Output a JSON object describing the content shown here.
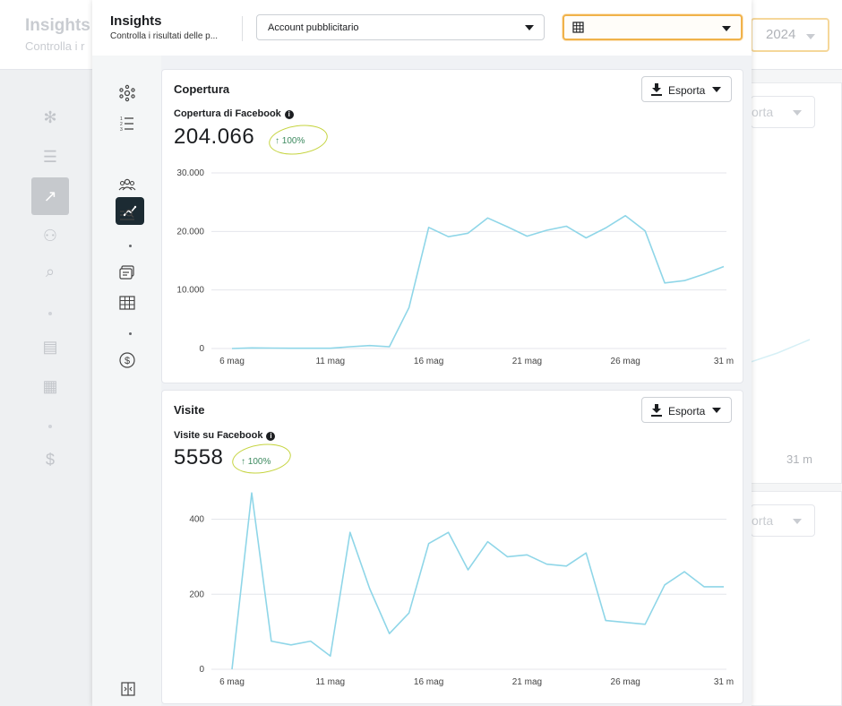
{
  "background": {
    "title": "Insights",
    "subtitle": "Controlla i r",
    "year": "2024",
    "export_partial_1": "orta",
    "export_partial_2": "orta",
    "x_end_label": "31 m"
  },
  "header": {
    "title": "Insights",
    "subtitle": "Controlla i risultati delle p...",
    "account_select": "Account pubblicitario",
    "table_select_icon": "table-icon"
  },
  "sidebar": {
    "items": [
      {
        "icon": "hub-icon"
      },
      {
        "icon": "list-icon"
      },
      {
        "icon": "trend-icon",
        "active": true
      },
      {
        "icon": "audience-icon"
      },
      {
        "icon": "search-list-icon"
      },
      {
        "icon": "ads-icon"
      },
      {
        "icon": "table-icon"
      },
      {
        "icon": "dollar-icon"
      },
      {
        "icon": "collapse-icon"
      }
    ]
  },
  "cards": {
    "copertura": {
      "title": "Copertura",
      "export_label": "Esporta",
      "metric_label": "Copertura di Facebook",
      "metric_value": "204.066",
      "delta": "100%"
    },
    "visite": {
      "title": "Visite",
      "export_label": "Esporta",
      "metric_label": "Visite su Facebook",
      "metric_value": "5558",
      "delta": "100%"
    }
  },
  "colors": {
    "line": "#8fd6e8",
    "highlight_border": "#f0b24a",
    "annotation": "#c5d43f",
    "delta": "#3d8a5f",
    "active_nav": "#1c2b33"
  },
  "chart_data": [
    {
      "type": "line",
      "title": "Copertura di Facebook",
      "xlabel": "",
      "ylabel": "",
      "x_ticks": [
        "6 mag",
        "11 mag",
        "16 mag",
        "21 mag",
        "26 mag",
        "31 m"
      ],
      "y_ticks": [
        "0",
        "10.000",
        "20.000",
        "30.000"
      ],
      "ylim": [
        0,
        30000
      ],
      "x": [
        6,
        7,
        8,
        9,
        10,
        11,
        12,
        13,
        14,
        15,
        16,
        17,
        18,
        19,
        20,
        21,
        22,
        23,
        24,
        25,
        26,
        27,
        28,
        29,
        30,
        31
      ],
      "series": [
        {
          "values": [
            0,
            100,
            80,
            50,
            40,
            50,
            300,
            500,
            300,
            7000,
            20700,
            19100,
            19700,
            22300,
            20800,
            19200,
            20200,
            20900,
            18900,
            20600,
            22700,
            20100,
            11200,
            11600,
            12700,
            14000
          ]
        }
      ],
      "grid": true
    },
    {
      "type": "line",
      "title": "Visite su Facebook",
      "xlabel": "",
      "ylabel": "",
      "x_ticks": [
        "6 mag",
        "11 mag",
        "16 mag",
        "21 mag",
        "26 mag",
        "31 m"
      ],
      "y_ticks": [
        "0",
        "200",
        "400"
      ],
      "ylim": [
        0,
        480
      ],
      "x": [
        6,
        7,
        8,
        9,
        10,
        11,
        12,
        13,
        14,
        15,
        16,
        17,
        18,
        19,
        20,
        21,
        22,
        23,
        24,
        25,
        26,
        27,
        28,
        29,
        30,
        31
      ],
      "series": [
        {
          "values": [
            0,
            470,
            75,
            65,
            75,
            35,
            365,
            215,
            95,
            150,
            335,
            365,
            265,
            340,
            300,
            305,
            280,
            275,
            310,
            130,
            125,
            120,
            225,
            260,
            220,
            220
          ]
        }
      ],
      "grid": true
    }
  ]
}
